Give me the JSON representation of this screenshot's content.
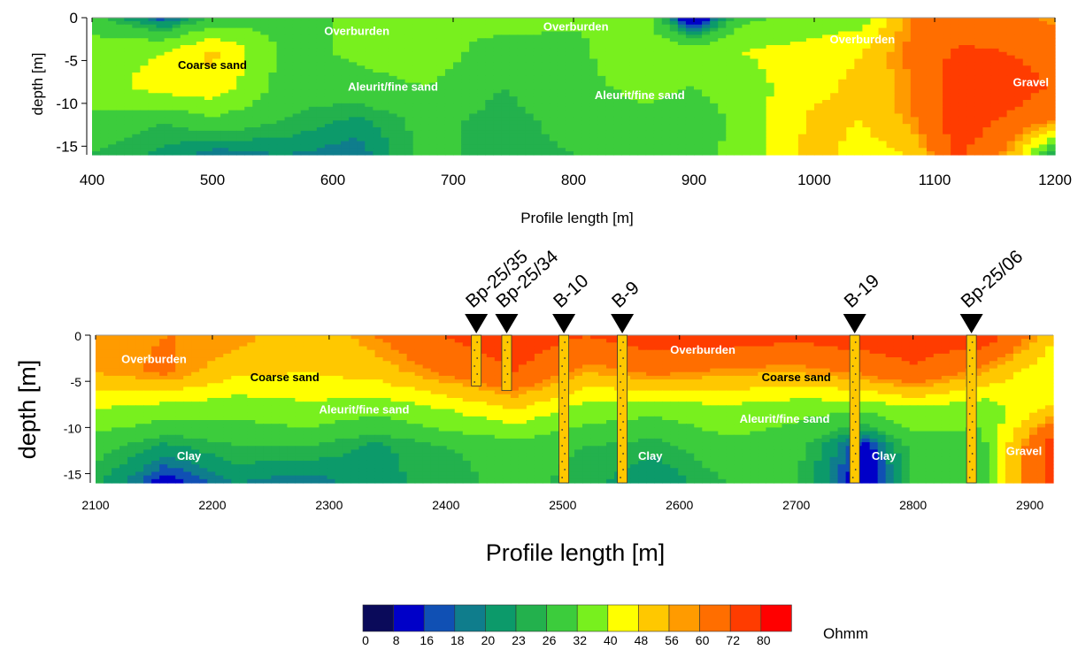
{
  "chart_data": [
    {
      "type": "heatmap",
      "xlabel": "Profile length [m]",
      "ylabel": "depth [m]",
      "xlim": [
        400,
        1200
      ],
      "ylim": [
        -16,
        0
      ],
      "x_ticks": [
        400,
        500,
        600,
        700,
        800,
        900,
        1000,
        1100,
        1200
      ],
      "y_ticks": [
        0,
        -5,
        -10,
        -15
      ],
      "annotations": [
        {
          "text": "Overburden",
          "x": 620,
          "y": -2
        },
        {
          "text": "Overburden",
          "x": 802,
          "y": -1.5
        },
        {
          "text": "Overburden",
          "x": 1040,
          "y": -3
        },
        {
          "text": "Coarse sand",
          "x": 500,
          "y": -6
        },
        {
          "text": "Aleurit/fine sand",
          "x": 650,
          "y": -8.5
        },
        {
          "text": "Aleurit/fine sand",
          "x": 855,
          "y": -9.5
        },
        {
          "text": "Gravel",
          "x": 1215,
          "y": -8
        }
      ],
      "resistivity_grid": {
        "x": [
          400,
          460,
          500,
          560,
          620,
          680,
          740,
          800,
          860,
          900,
          940,
          1000,
          1040,
          1080,
          1120,
          1160,
          1200
        ],
        "y": [
          0,
          -4,
          -8,
          -12,
          -16
        ],
        "values": [
          [
            28,
            16,
            26,
            30,
            33,
            32,
            36,
            33,
            34,
            8,
            30,
            34,
            36,
            60,
            66,
            62,
            58
          ],
          [
            36,
            40,
            50,
            30,
            33,
            36,
            28,
            30,
            38,
            36,
            40,
            44,
            48,
            62,
            74,
            72,
            66
          ],
          [
            36,
            44,
            46,
            28,
            30,
            32,
            26,
            30,
            34,
            32,
            36,
            46,
            50,
            60,
            80,
            80,
            70
          ],
          [
            30,
            26,
            30,
            26,
            22,
            28,
            24,
            28,
            30,
            28,
            34,
            50,
            48,
            58,
            80,
            70,
            60
          ],
          [
            26,
            22,
            18,
            20,
            18,
            28,
            24,
            26,
            30,
            30,
            34,
            52,
            44,
            48,
            74,
            58,
            18
          ]
        ]
      }
    },
    {
      "type": "heatmap",
      "xlabel": "Profile length [m]",
      "ylabel": "depth [m]",
      "xlim": [
        2100,
        2920
      ],
      "ylim": [
        -16,
        0
      ],
      "x_ticks": [
        2100,
        2200,
        2300,
        2400,
        2500,
        2600,
        2700,
        2800,
        2900
      ],
      "y_ticks": [
        0,
        -5,
        -10,
        -15
      ],
      "annotations": [
        {
          "text": "Overburden",
          "x": 2150,
          "y": -3
        },
        {
          "text": "Coarse sand",
          "x": 2262,
          "y": -5
        },
        {
          "text": "Aleurit/fine sand",
          "x": 2330,
          "y": -8.5
        },
        {
          "text": "Clay",
          "x": 2180,
          "y": -13.5
        },
        {
          "text": "Overburden",
          "x": 2620,
          "y": -2
        },
        {
          "text": "Coarse sand",
          "x": 2700,
          "y": -5
        },
        {
          "text": "Aleurit/fine sand",
          "x": 2690,
          "y": -9.5
        },
        {
          "text": "Clay",
          "x": 2575,
          "y": -13.5
        },
        {
          "text": "Clay",
          "x": 2775,
          "y": -13.5
        },
        {
          "text": "Gravel",
          "x": 2895,
          "y": -13
        }
      ],
      "boreholes": [
        {
          "name": "Bp-25/35",
          "x": 2426,
          "depth": 5.5
        },
        {
          "name": "Bp-25/34",
          "x": 2452,
          "depth": 6
        },
        {
          "name": "B-10",
          "x": 2501,
          "depth": 16
        },
        {
          "name": "B-9",
          "x": 2551,
          "depth": 16
        },
        {
          "name": "B-19",
          "x": 2750,
          "depth": 16
        },
        {
          "name": "Bp-25/06",
          "x": 2850,
          "depth": 16
        }
      ],
      "resistivity_grid": {
        "x": [
          2100,
          2160,
          2220,
          2280,
          2340,
          2400,
          2460,
          2520,
          2580,
          2640,
          2700,
          2760,
          2800,
          2860,
          2920
        ],
        "y": [
          0,
          -4,
          -8,
          -12,
          -16
        ],
        "values": [
          [
            56,
            60,
            60,
            48,
            60,
            72,
            80,
            72,
            80,
            80,
            76,
            80,
            80,
            80,
            50
          ],
          [
            56,
            62,
            50,
            48,
            52,
            62,
            72,
            56,
            62,
            58,
            56,
            62,
            70,
            56,
            40
          ],
          [
            40,
            36,
            34,
            38,
            34,
            40,
            48,
            36,
            34,
            38,
            34,
            34,
            38,
            34,
            50
          ],
          [
            28,
            22,
            26,
            26,
            22,
            26,
            28,
            26,
            24,
            30,
            28,
            14,
            28,
            30,
            80
          ],
          [
            24,
            14,
            20,
            18,
            22,
            24,
            28,
            24,
            20,
            26,
            26,
            12,
            26,
            30,
            80
          ]
        ]
      }
    }
  ],
  "colorbar": {
    "unit": "Ohmm",
    "labels": [
      "0",
      "8",
      "16",
      "18",
      "20",
      "23",
      "26",
      "32",
      "40",
      "48",
      "56",
      "60",
      "72",
      "80"
    ],
    "thresholds": [
      0,
      8,
      16,
      18,
      20,
      23,
      26,
      32,
      40,
      48,
      56,
      60,
      72,
      80
    ],
    "colors": [
      "#0a0a5a",
      "#0000c8",
      "#1050b4",
      "#0f7d8c",
      "#0c9a6a",
      "#23b14d",
      "#3ccc3c",
      "#78f01e",
      "#ffff00",
      "#ffc800",
      "#ff9b00",
      "#ff6e00",
      "#ff3c00",
      "#ff0000"
    ]
  }
}
